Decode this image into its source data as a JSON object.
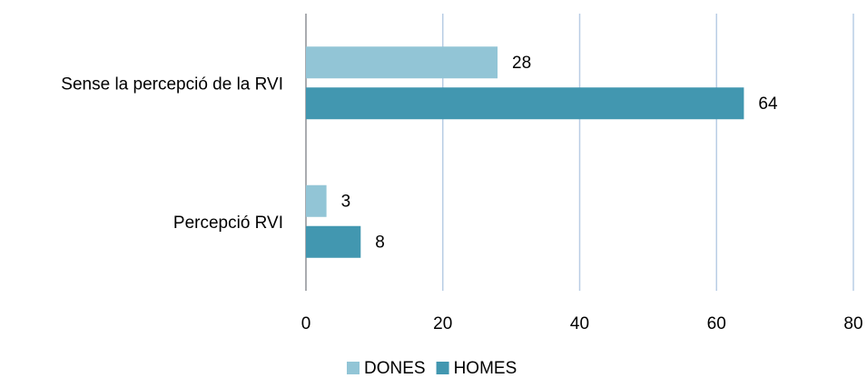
{
  "chart_data": {
    "type": "bar",
    "orientation": "horizontal",
    "categories": [
      "Sense la percepció de la RVI",
      "Percepció RVI"
    ],
    "series": [
      {
        "name": "DONES",
        "color": "#92c5d6",
        "values": [
          28,
          3
        ]
      },
      {
        "name": "HOMES",
        "color": "#4297b0",
        "values": [
          64,
          8
        ]
      }
    ],
    "xlim": [
      0,
      80
    ],
    "xticks": [
      0,
      20,
      40,
      60,
      80
    ],
    "grid": true,
    "legend": "bottom"
  }
}
